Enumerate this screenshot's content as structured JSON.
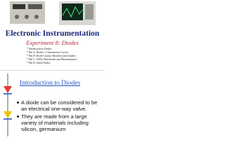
{
  "slides": [
    {
      "title": "Electronic Instrumentation",
      "subtitle": "Experiment 8: Diodes",
      "bullets": [
        "* Introduction to Diodes",
        "* Part A: Diode i-v Characteristic Curves",
        "* Part B: Diode Circuits: Rectifiers and Limiters",
        "* Part C: LEDs, Photodiodes and Phototransistors",
        "* Part D: Zener Diodes"
      ]
    },
    {
      "title": "Introduction to Diodes",
      "bullets": [
        "A diode can be considered to be an electrical one-way valve.",
        "They are made from a large variety of materials including silicon, germanium"
      ]
    }
  ]
}
